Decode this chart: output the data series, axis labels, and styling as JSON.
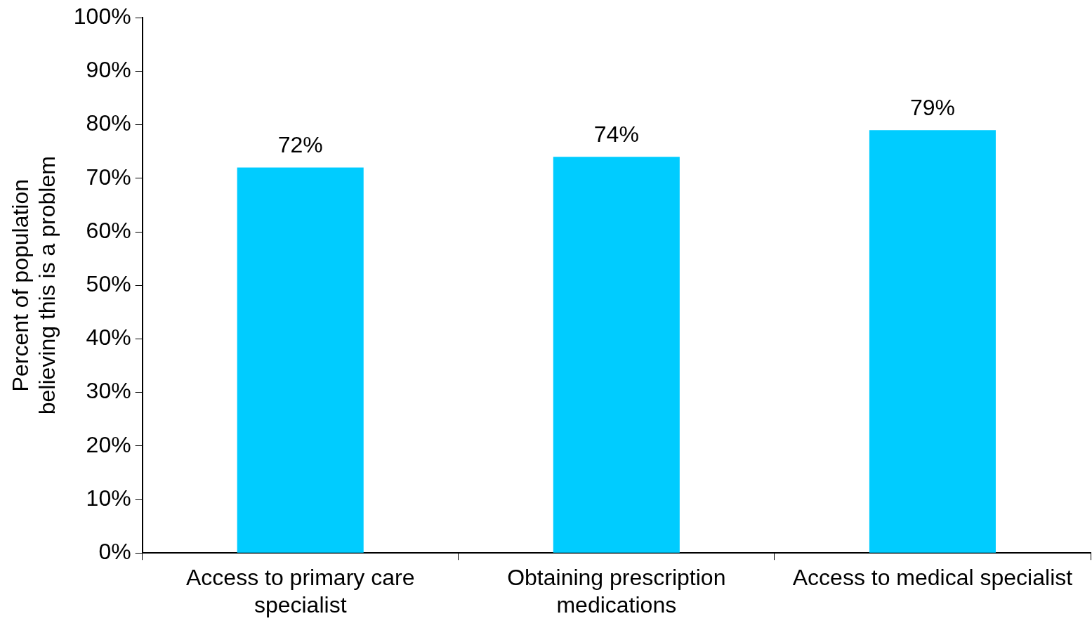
{
  "chart_data": {
    "type": "bar",
    "ylabel": "Percent of population believing this is a problem",
    "categories": [
      "Access to primary care specialist",
      "Obtaining prescription medications",
      "Access to medical specialist"
    ],
    "values": [
      72,
      74,
      79
    ],
    "color": "#00ccff",
    "value_labels": [
      "72%",
      "74%",
      "79%"
    ],
    "ylim": [
      0,
      100
    ],
    "yticks": [
      {
        "value": 0,
        "label": "0%"
      },
      {
        "value": 10,
        "label": "10%"
      },
      {
        "value": 20,
        "label": "20%"
      },
      {
        "value": 30,
        "label": "30%"
      },
      {
        "value": 40,
        "label": "40%"
      },
      {
        "value": 50,
        "label": "50%"
      },
      {
        "value": 60,
        "label": "60%"
      },
      {
        "value": 70,
        "label": "70%"
      },
      {
        "value": 80,
        "label": "80%"
      },
      {
        "value": 90,
        "label": "90%"
      },
      {
        "value": 100,
        "label": "100%"
      }
    ],
    "grid": false,
    "legend": false
  }
}
